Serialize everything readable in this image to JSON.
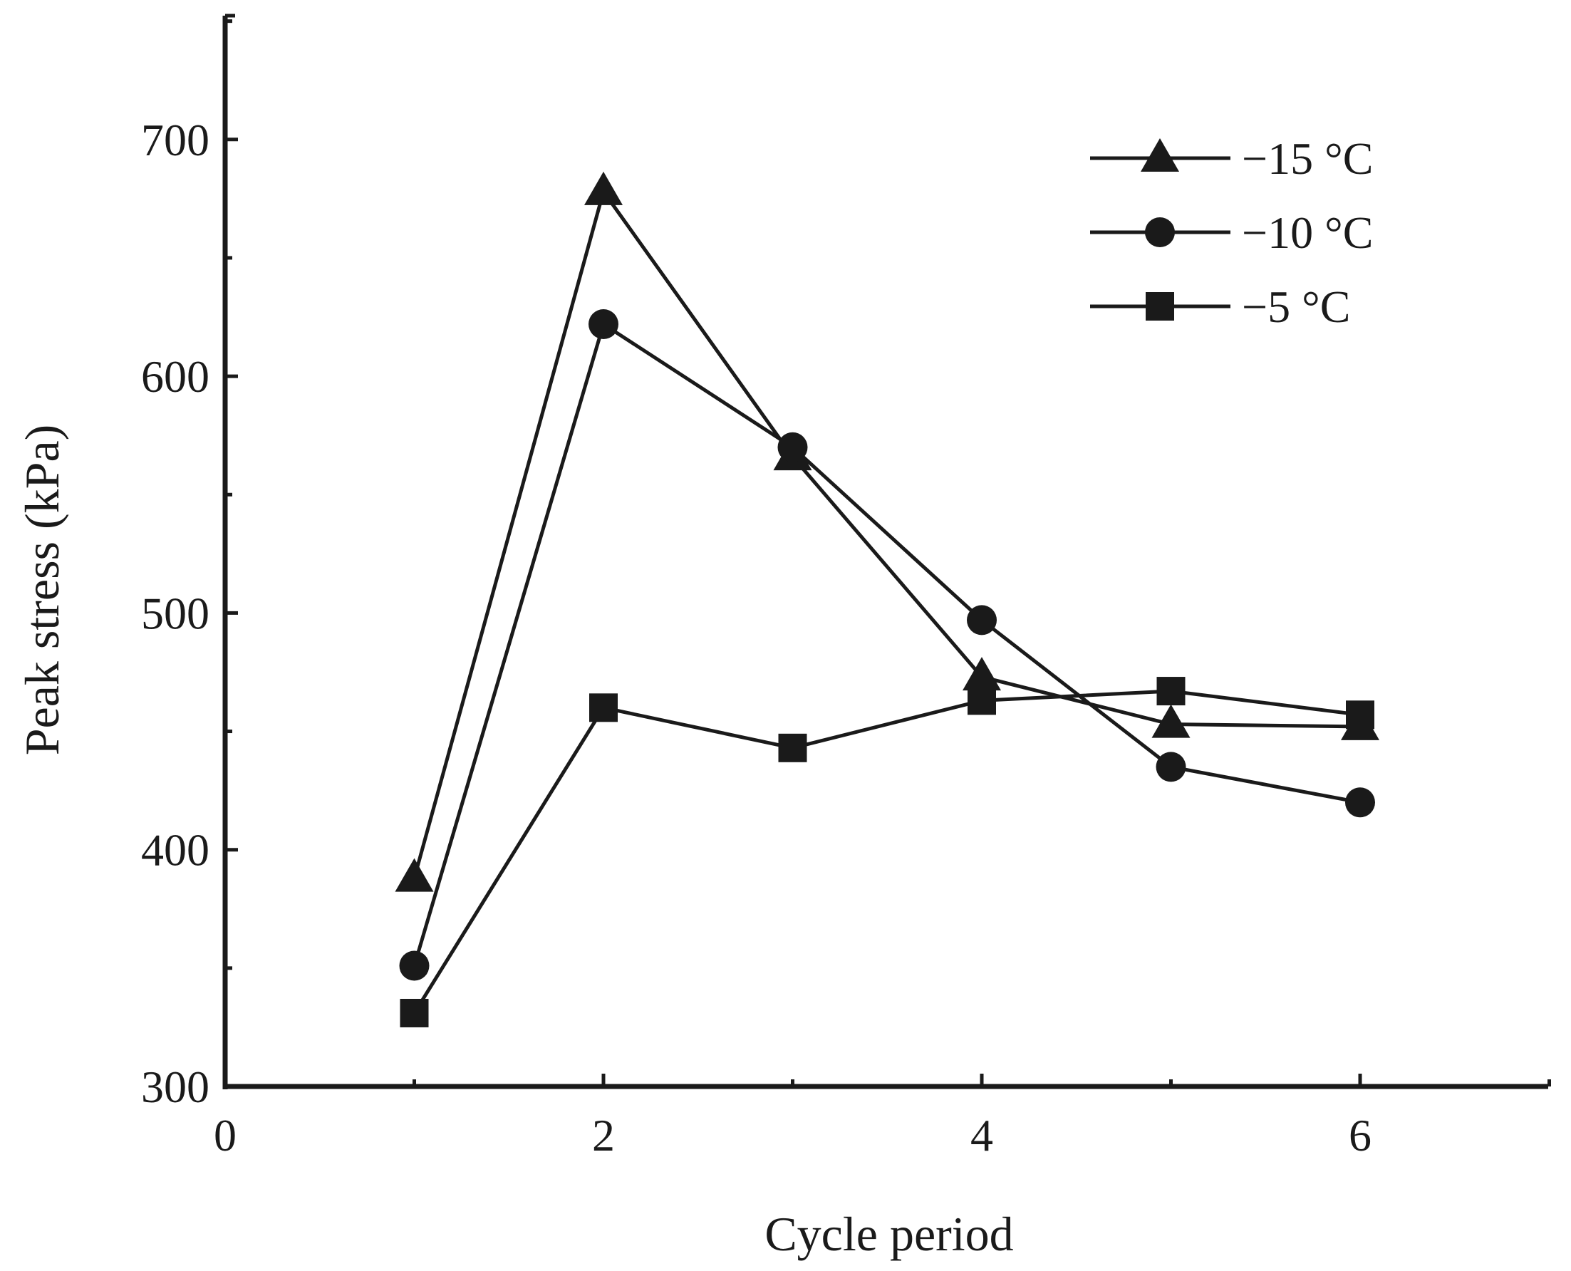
{
  "chart_data": {
    "type": "line",
    "title": "",
    "xlabel": "Cycle period",
    "ylabel": "Peak stress (kPa)",
    "xlim": [
      0,
      7
    ],
    "ylim": [
      300,
      750
    ],
    "xticks": [
      0,
      2,
      4,
      6
    ],
    "yticks": [
      300,
      400,
      500,
      600,
      700
    ],
    "grid": false,
    "legend_position": "top-right",
    "series": [
      {
        "name": "−15 °C",
        "marker": "triangle",
        "color": "#1a1a1a",
        "x": [
          1,
          2,
          3,
          4,
          5,
          6
        ],
        "y": [
          388,
          678,
          566,
          473,
          453,
          452
        ]
      },
      {
        "name": "−10 °C",
        "marker": "circle",
        "color": "#1a1a1a",
        "x": [
          1,
          2,
          3,
          4,
          5,
          6
        ],
        "y": [
          351,
          622,
          570,
          497,
          435,
          420
        ]
      },
      {
        "name": "−5 °C",
        "marker": "square",
        "color": "#1a1a1a",
        "x": [
          1,
          2,
          3,
          4,
          5,
          6
        ],
        "y": [
          331,
          460,
          443,
          463,
          467,
          457
        ]
      }
    ]
  }
}
